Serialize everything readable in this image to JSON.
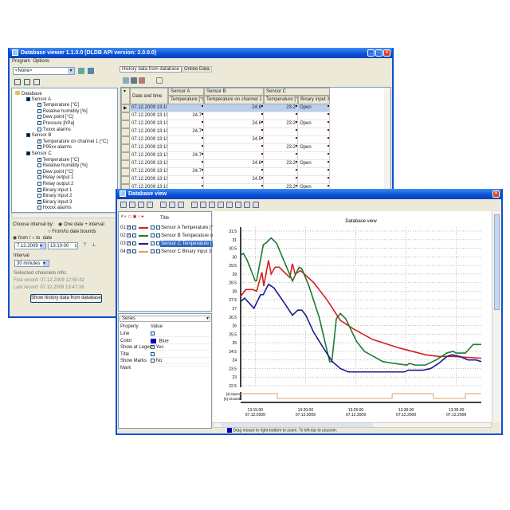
{
  "back_window": {
    "title": "Database viewer  1.1.0.0  (DLDB API version: 2.0.0.0)",
    "menu": [
      "Program",
      "Options"
    ],
    "db_combo": "<None>",
    "tree": [
      {
        "label": "Database",
        "level": 0,
        "check": "none"
      },
      {
        "label": "Sensor A",
        "level": 1,
        "check": "black"
      },
      {
        "label": "Temperature [°C]",
        "level": 2,
        "check": "on"
      },
      {
        "label": "Relative humidity [%]",
        "level": 2,
        "check": "off"
      },
      {
        "label": "Dew point [°C]",
        "level": 2,
        "check": "off"
      },
      {
        "label": "Pressure [hPa]",
        "level": 2,
        "check": "off"
      },
      {
        "label": "Txxxx alarms",
        "level": 2,
        "check": "off"
      },
      {
        "label": "Sensor B",
        "level": 1,
        "check": "black"
      },
      {
        "label": "Temperature on channel 1 [°C]",
        "level": 2,
        "check": "on"
      },
      {
        "label": "P95xx alarms",
        "level": 2,
        "check": "off"
      },
      {
        "label": "Sensor C",
        "level": 1,
        "check": "black"
      },
      {
        "label": "Temperature [°C]",
        "level": 2,
        "check": "on"
      },
      {
        "label": "Relative humidity [%]",
        "level": 2,
        "check": "off"
      },
      {
        "label": "Dew point [°C]",
        "level": 2,
        "check": "off"
      },
      {
        "label": "Relay output 1",
        "level": 2,
        "check": "off"
      },
      {
        "label": "Relay output 2",
        "level": 2,
        "check": "off"
      },
      {
        "label": "Binary input 1",
        "level": 2,
        "check": "off"
      },
      {
        "label": "Binary input 2",
        "level": 2,
        "check": "off"
      },
      {
        "label": "Binary input 3",
        "level": 2,
        "check": "on"
      },
      {
        "label": "Hxxxx alarms",
        "level": 2,
        "check": "off"
      }
    ],
    "interval": {
      "choose_label": "Choose interval by:",
      "opt1": "One date + interval",
      "opt2": "From/to date bounds",
      "from": "from",
      "slash": "/",
      "to": "to",
      "date_label": "date",
      "date": "7.12.2009",
      "time": "13:10:00",
      "interval_label": "Interval",
      "interval_value": "30 minutes",
      "info_label": "Selected channels info:",
      "first": "First record: 07.12.2009 12:50:42",
      "last": "Last record: 07.12.2009 13:47:16",
      "show_button": "Show history data from database"
    },
    "tabs": [
      "History data from database",
      "Online Data"
    ],
    "table": {
      "date_header": "Date and time",
      "groups": [
        "Sensor A",
        "Sensor B",
        "Sensor C"
      ],
      "columns": [
        "Temperature [°C]",
        "Temperature on channel 1 [°C]",
        "Temperature [°C]",
        "Binary input 3"
      ],
      "rows": [
        [
          "07.12.2009  13:10:01",
          "",
          "24.6",
          "23.2",
          "Open"
        ],
        [
          "07.12.2009  13:10:04",
          "24.7",
          "",
          "",
          ""
        ],
        [
          "07.12.2009  13:10:11",
          "",
          "24.6",
          "23.2",
          "Open"
        ],
        [
          "07.12.2009  13:10:14",
          "24.7",
          "",
          "",
          ""
        ],
        [
          "07.12.2009  13:10:21",
          "",
          "24.5",
          "",
          ""
        ],
        [
          "07.12.2009  13:10:22",
          "",
          "",
          "23.2",
          "Open"
        ],
        [
          "07.12.2009  13:10:24",
          "24.7",
          "",
          "",
          ""
        ],
        [
          "07.12.2009  13:10:31",
          "",
          "24.6",
          "23.2",
          "Open"
        ],
        [
          "07.12.2009  13:10:34",
          "24.7",
          "",
          "",
          ""
        ],
        [
          "07.12.2009  13:10:41",
          "",
          "24.5",
          "",
          ""
        ],
        [
          "07.12.2009  13:10:42",
          "",
          "",
          "23.2",
          "Open"
        ],
        [
          "07.12.2009  13:10:44",
          "24.7",
          "",
          "",
          ""
        ]
      ]
    }
  },
  "front_window": {
    "title": "Database view",
    "legend_header": {
      "num": "#",
      "title": "Title"
    },
    "legend": [
      {
        "num": "01",
        "title": "Sensor A Temperature [°C]",
        "color": "#d42020",
        "selected": false
      },
      {
        "num": "02",
        "title": "Sensor B Temperature on ch",
        "color": "#1f7a2e",
        "selected": false
      },
      {
        "num": "03",
        "title": "Sensor C Temperature [°C]",
        "color": "#1c1c8c",
        "selected": true
      },
      {
        "num": "04",
        "title": "Sensor C Binary input 3",
        "color": "#e0a060",
        "selected": false
      }
    ],
    "props": {
      "combo": "Series",
      "headers": [
        "Property",
        "Value"
      ],
      "rows": [
        [
          "Line",
          ""
        ],
        [
          "Color",
          "Blue"
        ],
        [
          "Show at Legend",
          "Yes"
        ],
        [
          "Title",
          ""
        ],
        [
          "Show Marks",
          "No"
        ],
        [
          "Mark",
          ""
        ]
      ],
      "color_swatch": "#0000c0"
    },
    "status": "Drag mouse to right-bottom to zoom. To left-top to unzoom."
  },
  "chart_data": {
    "type": "line",
    "title": "Database view",
    "xlim": [
      "13:13:33",
      "13:37:29"
    ],
    "ylim": [
      22.5,
      31.5
    ],
    "yticks": [
      "31.5",
      "31",
      "30.5",
      "30",
      "29.5",
      "29",
      "28.5",
      "28",
      "27.5",
      "27",
      "26.5",
      "26",
      "25.5",
      "25",
      "24.5",
      "24",
      "23.5",
      "23",
      "22.5"
    ],
    "xticks": [
      {
        "t": "13:15:00",
        "l1": "13:15:00",
        "l2": "07.12.2009"
      },
      {
        "t": "13:20:00",
        "l1": "13:20:00",
        "l2": "07.12.2009"
      },
      {
        "t": "13:25:00",
        "l1": "13:25:00",
        "l2": "07.12.2009"
      },
      {
        "t": "13:30:00",
        "l1": "13:30:00",
        "l2": "07.12.2009"
      },
      {
        "t": "13:35:00",
        "l1": "13:35:00",
        "l2": "07.12.2009"
      }
    ],
    "grid": true,
    "series": [
      {
        "name": "Sensor A Temperature [°C]",
        "color": "#d42020",
        "points": [
          [
            "13:13:33",
            27.7
          ],
          [
            "13:14:04",
            28.1
          ],
          [
            "13:14:44",
            28.1
          ],
          [
            "13:15:08",
            28.0
          ],
          [
            "13:15:40",
            29.1
          ],
          [
            "13:15:51",
            28.3
          ],
          [
            "13:16:19",
            29.8
          ],
          [
            "13:16:35",
            29.0
          ],
          [
            "13:16:59",
            29.4
          ],
          [
            "13:17:23",
            29.4
          ],
          [
            "13:18:26",
            28.8
          ],
          [
            "13:18:42",
            29.6
          ],
          [
            "13:18:58",
            29.0
          ],
          [
            "13:19:30",
            29.2
          ],
          [
            "13:20:49",
            28.5
          ],
          [
            "13:22:08",
            27.5
          ],
          [
            "13:23:28",
            26.3
          ],
          [
            "13:24:47",
            25.8
          ],
          [
            "13:26:38",
            25.2
          ],
          [
            "13:29:17",
            24.7
          ],
          [
            "13:31:56",
            24.3
          ],
          [
            "13:33:15",
            24.2
          ],
          [
            "13:34:35",
            24.2
          ],
          [
            "13:37:29",
            24.1
          ]
        ]
      },
      {
        "name": "Sensor B Temperature on ch",
        "color": "#1f7a2e",
        "points": [
          [
            "13:13:33",
            30.1
          ],
          [
            "13:13:49",
            30.2
          ],
          [
            "13:14:12",
            29.8
          ],
          [
            "13:15:00",
            28.6
          ],
          [
            "13:15:08",
            28.6
          ],
          [
            "13:15:48",
            30.7
          ],
          [
            "13:16:03",
            30.8
          ],
          [
            "13:16:35",
            31.1
          ],
          [
            "13:17:07",
            30.8
          ],
          [
            "13:18:42",
            28.6
          ],
          [
            "13:19:22",
            29.4
          ],
          [
            "13:19:38",
            29.3
          ],
          [
            "13:20:17",
            28.4
          ],
          [
            "13:21:21",
            26.5
          ],
          [
            "13:22:24",
            23.9
          ],
          [
            "13:22:37",
            23.9
          ],
          [
            "13:23:04",
            26.4
          ],
          [
            "13:23:28",
            26.7
          ],
          [
            "13:24:00",
            26.4
          ],
          [
            "13:25:03",
            25.1
          ],
          [
            "13:25:51",
            24.5
          ],
          [
            "13:27:42",
            23.9
          ],
          [
            "13:28:45",
            23.8
          ],
          [
            "13:30:05",
            23.7
          ],
          [
            "13:30:20",
            23.8
          ],
          [
            "13:30:52",
            23.7
          ],
          [
            "13:31:56",
            23.7
          ],
          [
            "13:32:59",
            24.0
          ],
          [
            "13:34:03",
            24.4
          ],
          [
            "13:34:42",
            24.5
          ],
          [
            "13:34:58",
            24.4
          ],
          [
            "13:35:54",
            24.4
          ],
          [
            "13:36:41",
            24.9
          ],
          [
            "13:37:29",
            24.9
          ]
        ]
      },
      {
        "name": "Sensor C Temperature [°C]",
        "color": "#1c1c8c",
        "points": [
          [
            "13:13:33",
            27.4
          ],
          [
            "13:13:57",
            27.6
          ],
          [
            "13:14:52",
            27.0
          ],
          [
            "13:15:32",
            27.8
          ],
          [
            "13:15:48",
            27.8
          ],
          [
            "13:16:19",
            28.4
          ],
          [
            "13:16:51",
            28.2
          ],
          [
            "13:17:55",
            27.3
          ],
          [
            "13:18:42",
            26.6
          ],
          [
            "13:19:14",
            26.9
          ],
          [
            "13:19:38",
            26.9
          ],
          [
            "13:20:02",
            26.6
          ],
          [
            "13:20:49",
            25.6
          ],
          [
            "13:21:53",
            24.6
          ],
          [
            "13:22:40",
            23.9
          ],
          [
            "13:23:28",
            23.5
          ],
          [
            "13:24:15",
            23.3
          ],
          [
            "13:29:49",
            23.3
          ],
          [
            "13:30:13",
            23.4
          ],
          [
            "13:31:40",
            23.4
          ],
          [
            "13:32:27",
            23.5
          ],
          [
            "13:33:15",
            23.8
          ],
          [
            "13:34:03",
            24.2
          ],
          [
            "13:34:34",
            24.3
          ],
          [
            "13:35:22",
            24.2
          ],
          [
            "13:36:10",
            24.0
          ],
          [
            "13:36:57",
            24.0
          ],
          [
            "13:37:29",
            23.9
          ]
        ]
      }
    ],
    "binary": {
      "name": "Sensor C Binary input 3",
      "color": "#e0a060",
      "labels": [
        "[4] Open",
        "[4] Closed"
      ],
      "segments": [
        [
          "13:13:33",
          "Open"
        ],
        [
          "13:17:12",
          "Closed"
        ],
        [
          "13:28:37",
          "Open"
        ],
        [
          "13:32:43",
          "Closed"
        ],
        [
          "13:35:54",
          "Open"
        ],
        [
          "13:37:29",
          "Open"
        ]
      ]
    }
  }
}
